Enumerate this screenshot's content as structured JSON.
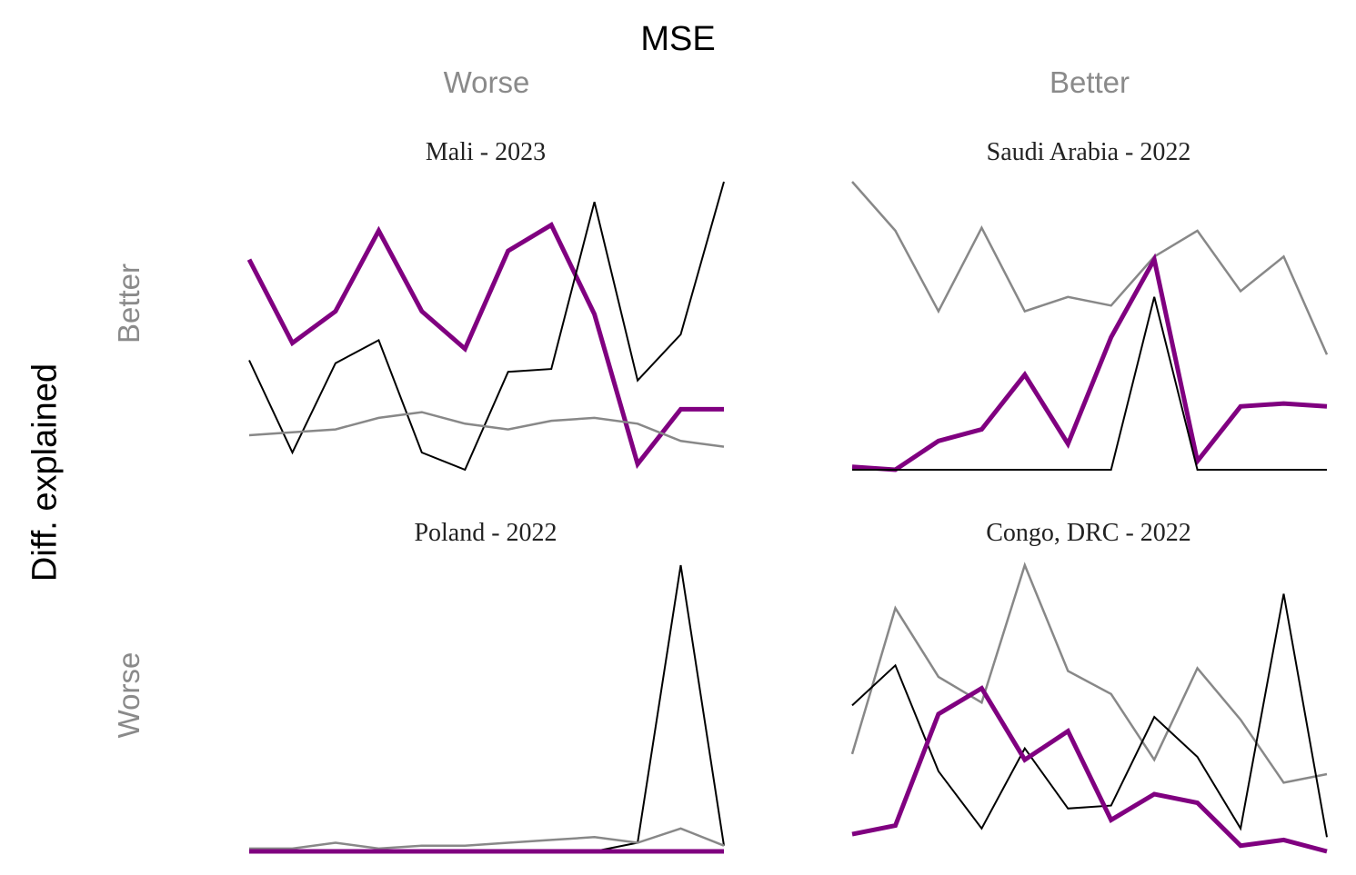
{
  "figure": {
    "title": "MSE",
    "y_title": "Diff. explained",
    "columns": [
      "Worse",
      "Better"
    ],
    "rows": [
      "Better",
      "Worse"
    ]
  },
  "chart_data": [
    {
      "type": "line",
      "title": "Mali - 2023",
      "x": [
        1,
        2,
        3,
        4,
        5,
        6,
        7,
        8,
        9,
        10,
        11,
        12
      ],
      "ylim": [
        0,
        1
      ],
      "series": [
        {
          "color": "#800080",
          "width": 5,
          "values": [
            0.73,
            0.44,
            0.55,
            0.83,
            0.55,
            0.42,
            0.76,
            0.85,
            0.54,
            0.02,
            0.21,
            0.21
          ]
        },
        {
          "color": "#000000",
          "width": 2,
          "values": [
            0.38,
            0.06,
            0.37,
            0.45,
            0.06,
            0.0,
            0.34,
            0.35,
            0.93,
            0.31,
            0.47,
            1.0
          ]
        },
        {
          "color": "#888888",
          "width": 2.5,
          "values": [
            0.12,
            0.13,
            0.14,
            0.18,
            0.2,
            0.16,
            0.14,
            0.17,
            0.18,
            0.16,
            0.1,
            0.08
          ]
        }
      ]
    },
    {
      "type": "line",
      "title": "Saudi Arabia - 2022",
      "x": [
        1,
        2,
        3,
        4,
        5,
        6,
        7,
        8,
        9,
        10,
        11,
        12
      ],
      "ylim": [
        0,
        1
      ],
      "series": [
        {
          "color": "#888888",
          "width": 2.5,
          "values": [
            1.0,
            0.83,
            0.55,
            0.84,
            0.55,
            0.6,
            0.57,
            0.74,
            0.83,
            0.62,
            0.74,
            0.4
          ]
        },
        {
          "color": "#800080",
          "width": 5,
          "values": [
            0.01,
            0.0,
            0.1,
            0.14,
            0.33,
            0.09,
            0.46,
            0.73,
            0.03,
            0.22,
            0.23,
            0.22
          ]
        },
        {
          "color": "#000000",
          "width": 2,
          "values": [
            0.0,
            0.0,
            0.0,
            0.0,
            0.0,
            0.0,
            0.0,
            0.6,
            0.0,
            0.0,
            0.0,
            0.0
          ]
        }
      ]
    },
    {
      "type": "line",
      "title": "Poland - 2022",
      "x": [
        1,
        2,
        3,
        4,
        5,
        6,
        7,
        8,
        9,
        10,
        11,
        12
      ],
      "ylim": [
        0,
        1
      ],
      "series": [
        {
          "color": "#000000",
          "width": 2,
          "values": [
            0.0,
            0.0,
            0.0,
            0.0,
            0.0,
            0.0,
            0.0,
            0.0,
            0.0,
            0.03,
            1.0,
            0.02
          ]
        },
        {
          "color": "#888888",
          "width": 2.5,
          "values": [
            0.01,
            0.01,
            0.03,
            0.01,
            0.02,
            0.02,
            0.03,
            0.04,
            0.05,
            0.03,
            0.08,
            0.02
          ]
        },
        {
          "color": "#800080",
          "width": 5,
          "values": [
            0.0,
            0.0,
            0.0,
            0.0,
            0.0,
            0.0,
            0.0,
            0.0,
            0.0,
            0.0,
            0.0,
            0.0
          ]
        }
      ]
    },
    {
      "type": "line",
      "title": "Congo, DRC - 2022",
      "x": [
        1,
        2,
        3,
        4,
        5,
        6,
        7,
        8,
        9,
        10,
        11,
        12
      ],
      "ylim": [
        0,
        1
      ],
      "series": [
        {
          "color": "#888888",
          "width": 2.5,
          "values": [
            0.34,
            0.85,
            0.61,
            0.52,
            1.0,
            0.63,
            0.55,
            0.32,
            0.64,
            0.46,
            0.24,
            0.27
          ]
        },
        {
          "color": "#000000",
          "width": 2,
          "values": [
            0.51,
            0.65,
            0.28,
            0.08,
            0.36,
            0.15,
            0.16,
            0.47,
            0.33,
            0.08,
            0.9,
            0.05
          ]
        },
        {
          "color": "#800080",
          "width": 5,
          "values": [
            0.06,
            0.09,
            0.48,
            0.57,
            0.32,
            0.42,
            0.11,
            0.2,
            0.17,
            0.02,
            0.04,
            0.0
          ]
        }
      ]
    }
  ]
}
